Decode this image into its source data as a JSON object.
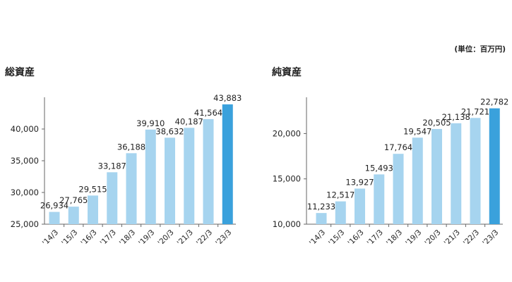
{
  "unit_note": "(単位：百万円)",
  "colors": {
    "bar": "#a6d4ef",
    "highlight": "#3aa1dc",
    "axis": "#666666",
    "text": "#222222"
  },
  "chart_data": [
    {
      "type": "bar",
      "title": "総資産",
      "categories": [
        "'14/3",
        "'15/3",
        "'16/3",
        "'17/3",
        "'18/3",
        "'19/3",
        "'20/3",
        "'21/3",
        "'22/3",
        "'23/3"
      ],
      "values": [
        26934,
        27765,
        29515,
        33187,
        36188,
        39910,
        38632,
        40187,
        41564,
        43883
      ],
      "value_labels": [
        "26,934",
        "27,765",
        "29,515",
        "33,187",
        "36,188",
        "39,910",
        "38,632",
        "40,187",
        "41,564",
        "43,883"
      ],
      "ylim": [
        25000,
        45000
      ],
      "yticks": [
        25000,
        30000,
        35000,
        40000
      ],
      "ytick_labels": [
        "25,000",
        "30,000",
        "35,000",
        "40,000"
      ],
      "highlight_index": 9,
      "grid": false
    },
    {
      "type": "bar",
      "title": "純資産",
      "categories": [
        "'14/3",
        "'15/3",
        "'16/3",
        "'17/3",
        "'18/3",
        "'19/3",
        "'20/3",
        "'21/3",
        "'22/3",
        "'23/3"
      ],
      "values": [
        11233,
        12517,
        13927,
        15493,
        17764,
        19547,
        20505,
        21138,
        21721,
        22782
      ],
      "value_labels": [
        "11,233",
        "12,517",
        "13,927",
        "15,493",
        "17,764",
        "19,547",
        "20,505",
        "21,138",
        "21,721",
        "22,782"
      ],
      "ylim": [
        10000,
        24000
      ],
      "yticks": [
        10000,
        15000,
        20000
      ],
      "ytick_labels": [
        "10,000",
        "15,000",
        "20,000"
      ],
      "highlight_index": 9,
      "grid": false
    }
  ]
}
